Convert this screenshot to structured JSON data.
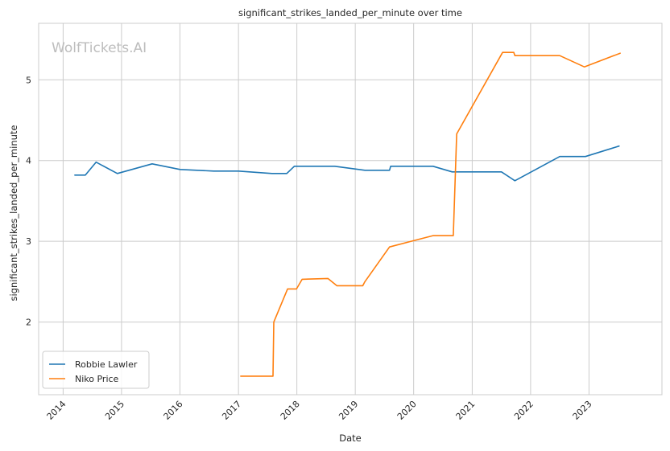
{
  "chart_data": {
    "type": "line",
    "title": "significant_strikes_landed_per_minute over time",
    "xlabel": "Date",
    "ylabel": "significant_strikes_landed_per_minute",
    "watermark": "WolfTickets.AI",
    "xlim": [
      "2013-08-01",
      "2024-04-01"
    ],
    "ylim": [
      1.1,
      5.7
    ],
    "x_ticks": [
      "2014",
      "2015",
      "2016",
      "2017",
      "2018",
      "2019",
      "2020",
      "2021",
      "2022",
      "2023"
    ],
    "y_ticks": [
      2,
      3,
      4,
      5
    ],
    "grid": true,
    "legend": "lower-left",
    "series": [
      {
        "name": "Robbie Lawler",
        "color": "#1f77b4",
        "points": [
          [
            "2014-03-15",
            3.82
          ],
          [
            "2014-05-20",
            3.82
          ],
          [
            "2014-07-26",
            3.98
          ],
          [
            "2014-12-06",
            3.84
          ],
          [
            "2015-07-11",
            3.96
          ],
          [
            "2016-01-02",
            3.89
          ],
          [
            "2016-07-30",
            3.87
          ],
          [
            "2017-01-01",
            3.87
          ],
          [
            "2017-07-29",
            3.84
          ],
          [
            "2017-10-30",
            3.84
          ],
          [
            "2017-12-16",
            3.93
          ],
          [
            "2018-08-25",
            3.93
          ],
          [
            "2019-03-02",
            3.88
          ],
          [
            "2019-08-03",
            3.88
          ],
          [
            "2019-08-10",
            3.93
          ],
          [
            "2020-05-01",
            3.93
          ],
          [
            "2020-08-29",
            3.86
          ],
          [
            "2021-07-03",
            3.86
          ],
          [
            "2021-09-25",
            3.75
          ],
          [
            "2022-07-02",
            4.05
          ],
          [
            "2022-12-10",
            4.05
          ],
          [
            "2023-07-08",
            4.18
          ]
        ]
      },
      {
        "name": "Niko Price",
        "color": "#ff7f0e",
        "points": [
          [
            "2017-01-15",
            1.33
          ],
          [
            "2017-08-05",
            1.33
          ],
          [
            "2017-08-10",
            2.0
          ],
          [
            "2017-11-04",
            2.41
          ],
          [
            "2017-12-30",
            2.41
          ],
          [
            "2018-02-03",
            2.53
          ],
          [
            "2018-07-14",
            2.54
          ],
          [
            "2018-09-08",
            2.45
          ],
          [
            "2019-02-17",
            2.45
          ],
          [
            "2019-03-02",
            2.5
          ],
          [
            "2019-08-03",
            2.93
          ],
          [
            "2020-05-01",
            3.07
          ],
          [
            "2020-09-05",
            3.07
          ],
          [
            "2020-09-26",
            4.33
          ],
          [
            "2021-07-10",
            5.34
          ],
          [
            "2021-09-18",
            5.34
          ],
          [
            "2021-09-25",
            5.3
          ],
          [
            "2022-07-02",
            5.3
          ],
          [
            "2022-12-03",
            5.16
          ],
          [
            "2023-07-15",
            5.33
          ]
        ]
      }
    ]
  }
}
